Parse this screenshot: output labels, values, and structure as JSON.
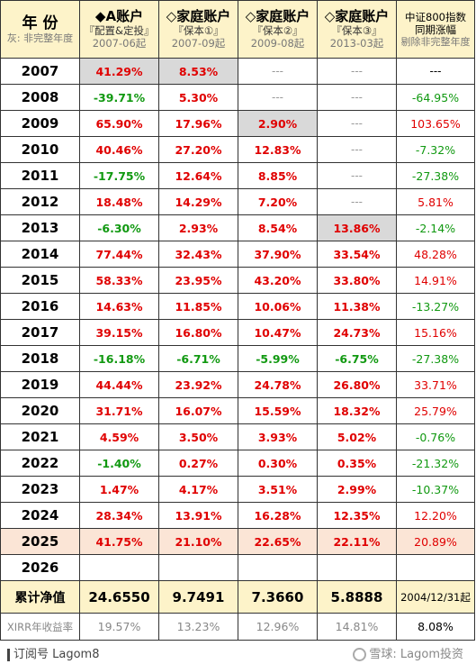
{
  "header": {
    "year_label": "年 份",
    "year_note": "灰: 非完整年度",
    "columns": [
      {
        "title": "◆A账户",
        "sub": "『配置&定投』",
        "date": "2007-06起"
      },
      {
        "title": "◇家庭账户",
        "sub": "『保本①』",
        "date": "2007-09起"
      },
      {
        "title": "◇家庭账户",
        "sub": "『保本②』",
        "date": "2009-08起"
      },
      {
        "title": "◇家庭账户",
        "sub": "『保本③』",
        "date": "2013-03起"
      },
      {
        "title": "中证800指数",
        "sub": "同期涨幅",
        "date": "剔除非完整年度"
      }
    ]
  },
  "rows": [
    {
      "year": "2007",
      "cells": [
        "41.29%",
        "8.53%",
        "---",
        "---",
        "---"
      ]
    },
    {
      "year": "2008",
      "cells": [
        "-39.71%",
        "5.30%",
        "---",
        "---",
        "-64.95%"
      ]
    },
    {
      "year": "2009",
      "cells": [
        "65.90%",
        "17.96%",
        "2.90%",
        "---",
        "103.65%"
      ]
    },
    {
      "year": "2010",
      "cells": [
        "40.46%",
        "27.20%",
        "12.83%",
        "---",
        "-7.32%"
      ]
    },
    {
      "year": "2011",
      "cells": [
        "-17.75%",
        "12.64%",
        "8.85%",
        "---",
        "-27.38%"
      ]
    },
    {
      "year": "2012",
      "cells": [
        "18.48%",
        "14.29%",
        "7.20%",
        "---",
        "5.81%"
      ]
    },
    {
      "year": "2013",
      "cells": [
        "-6.30%",
        "2.93%",
        "8.54%",
        "13.86%",
        "-2.14%"
      ]
    },
    {
      "year": "2014",
      "cells": [
        "77.44%",
        "32.43%",
        "37.90%",
        "33.54%",
        "48.28%"
      ]
    },
    {
      "year": "2015",
      "cells": [
        "58.33%",
        "23.95%",
        "43.20%",
        "33.80%",
        "14.91%"
      ]
    },
    {
      "year": "2016",
      "cells": [
        "14.63%",
        "11.85%",
        "10.06%",
        "11.38%",
        "-13.27%"
      ]
    },
    {
      "year": "2017",
      "cells": [
        "39.15%",
        "16.80%",
        "10.47%",
        "24.73%",
        "15.16%"
      ]
    },
    {
      "year": "2018",
      "cells": [
        "-16.18%",
        "-6.71%",
        "-5.99%",
        "-6.75%",
        "-27.38%"
      ]
    },
    {
      "year": "2019",
      "cells": [
        "44.44%",
        "23.92%",
        "24.78%",
        "26.80%",
        "33.71%"
      ]
    },
    {
      "year": "2020",
      "cells": [
        "31.71%",
        "16.07%",
        "15.59%",
        "18.32%",
        "25.79%"
      ]
    },
    {
      "year": "2021",
      "cells": [
        "4.59%",
        "3.50%",
        "3.93%",
        "5.02%",
        "-0.76%"
      ]
    },
    {
      "year": "2022",
      "cells": [
        "-1.40%",
        "0.27%",
        "0.30%",
        "0.35%",
        "-21.32%"
      ]
    },
    {
      "year": "2023",
      "cells": [
        "1.47%",
        "4.17%",
        "3.51%",
        "2.99%",
        "-10.37%"
      ]
    },
    {
      "year": "2024",
      "cells": [
        "28.34%",
        "13.91%",
        "16.28%",
        "12.35%",
        "12.20%"
      ]
    },
    {
      "year": "2025",
      "cells": [
        "41.75%",
        "21.10%",
        "22.65%",
        "22.11%",
        "20.89%"
      ]
    },
    {
      "year": "2026",
      "cells": [
        "",
        "",
        "",
        "",
        ""
      ]
    }
  ],
  "totals": {
    "label": "累计净值",
    "values": [
      "24.6550",
      "9.7491",
      "7.3660",
      "5.8888",
      "2004/12/31起"
    ]
  },
  "xirr": {
    "label": "XIRR年收益率",
    "values": [
      "19.57%",
      "13.23%",
      "12.96%",
      "14.81%",
      "8.08%"
    ]
  },
  "footer": {
    "left": "订阅号 Lagom8",
    "right": "雪球: Lagom投资"
  },
  "colors": {
    "positive": "#e00000",
    "negative": "#119911",
    "header_bg": "#fdf3c9",
    "highlight_bg": "#fbe5d6",
    "partial_year_bg": "#d9d9d9"
  }
}
